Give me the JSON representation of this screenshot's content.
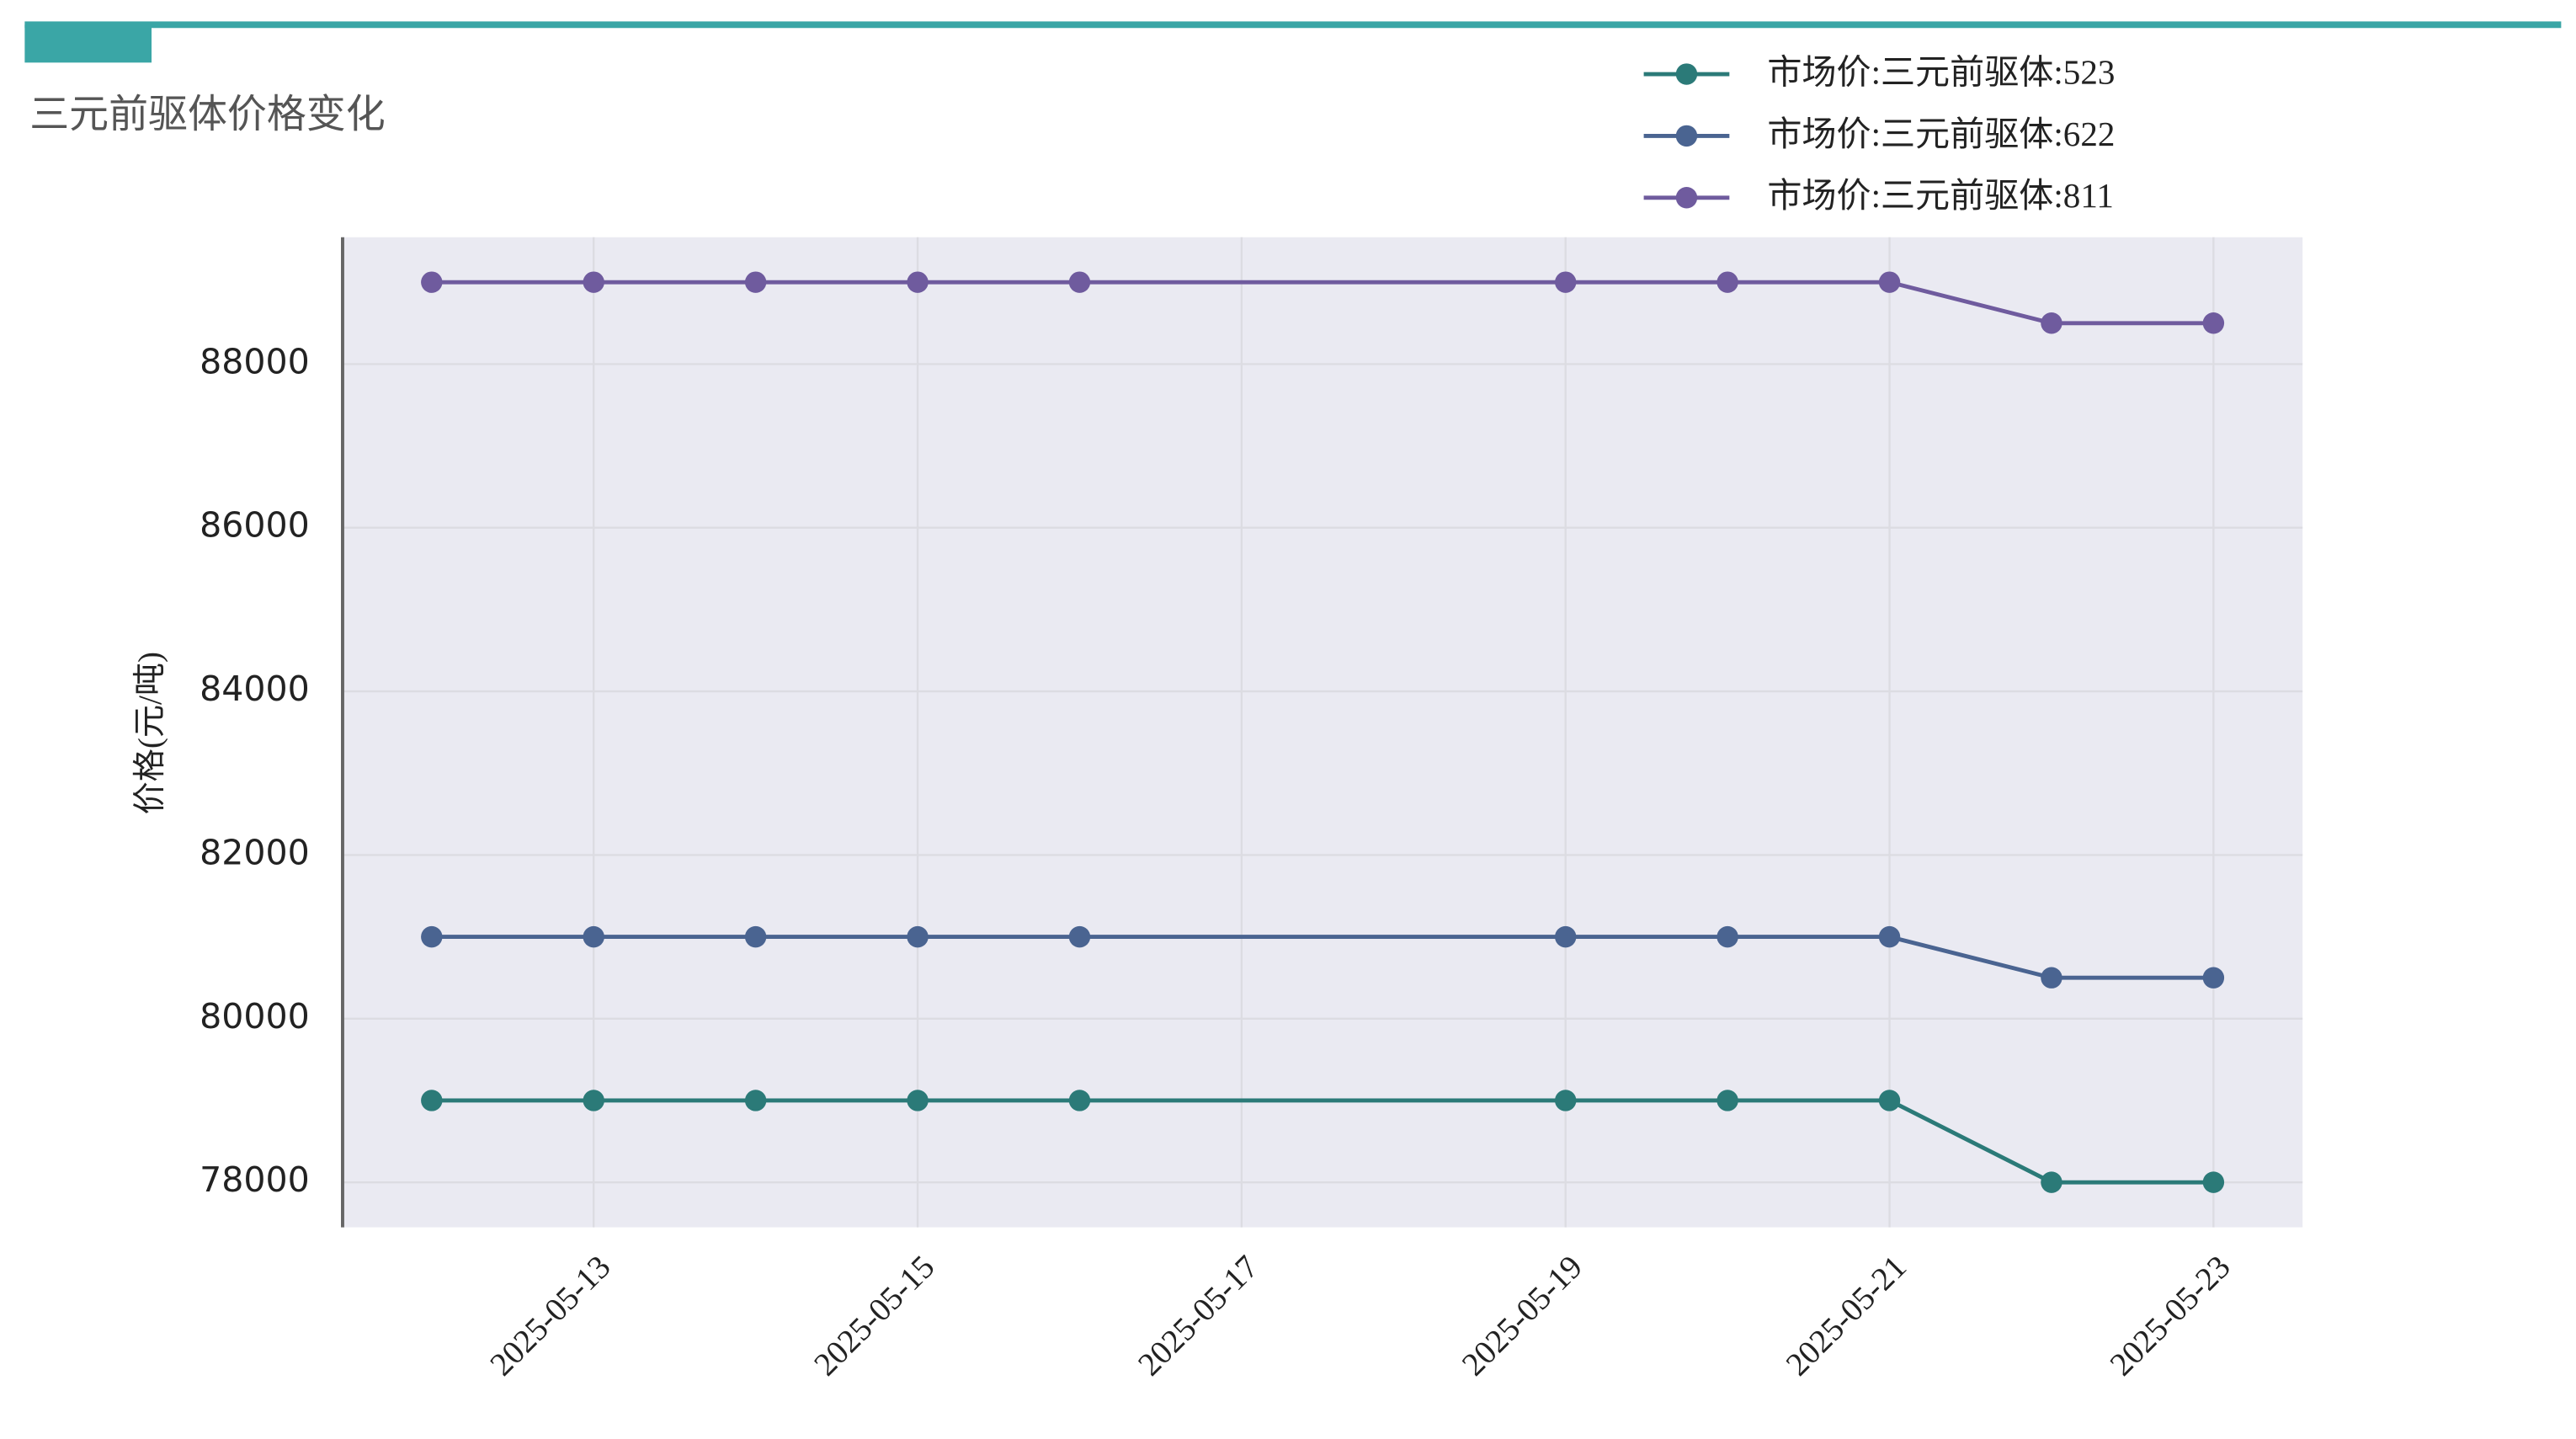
{
  "chart_data": {
    "type": "line",
    "title": "三元前驱体价格变化",
    "y_label": "价格(元/吨)",
    "x": [
      "2025-05-12",
      "2025-05-13",
      "2025-05-14",
      "2025-05-15",
      "2025-05-16",
      "2025-05-19",
      "2025-05-20",
      "2025-05-21",
      "2025-05-22",
      "2025-05-23"
    ],
    "xlim": [
      "2025-05-11T10:48:00Z",
      "2025-05-23T13:12:00Z"
    ],
    "xticks": [
      "2025-05-13",
      "2025-05-15",
      "2025-05-17",
      "2025-05-19",
      "2025-05-21",
      "2025-05-23"
    ],
    "ylim": [
      77450,
      89550
    ],
    "yticks": [
      78000,
      80000,
      82000,
      84000,
      86000,
      88000
    ],
    "grid": true,
    "legend": "top-right",
    "series": [
      {
        "name": "市场价:三元前驱体:523",
        "color": "#2b7a78",
        "values": [
          79000,
          79000,
          79000,
          79000,
          79000,
          79000,
          79000,
          79000,
          78000,
          78000
        ]
      },
      {
        "name": "市场价:三元前驱体:622",
        "color": "#4a6491",
        "values": [
          81000,
          81000,
          81000,
          81000,
          81000,
          81000,
          81000,
          81000,
          80500,
          80500
        ]
      },
      {
        "name": "市场价:三元前驱体:811",
        "color": "#6f5b9e",
        "values": [
          89000,
          89000,
          89000,
          89000,
          89000,
          89000,
          89000,
          89000,
          88500,
          88500
        ]
      }
    ]
  }
}
